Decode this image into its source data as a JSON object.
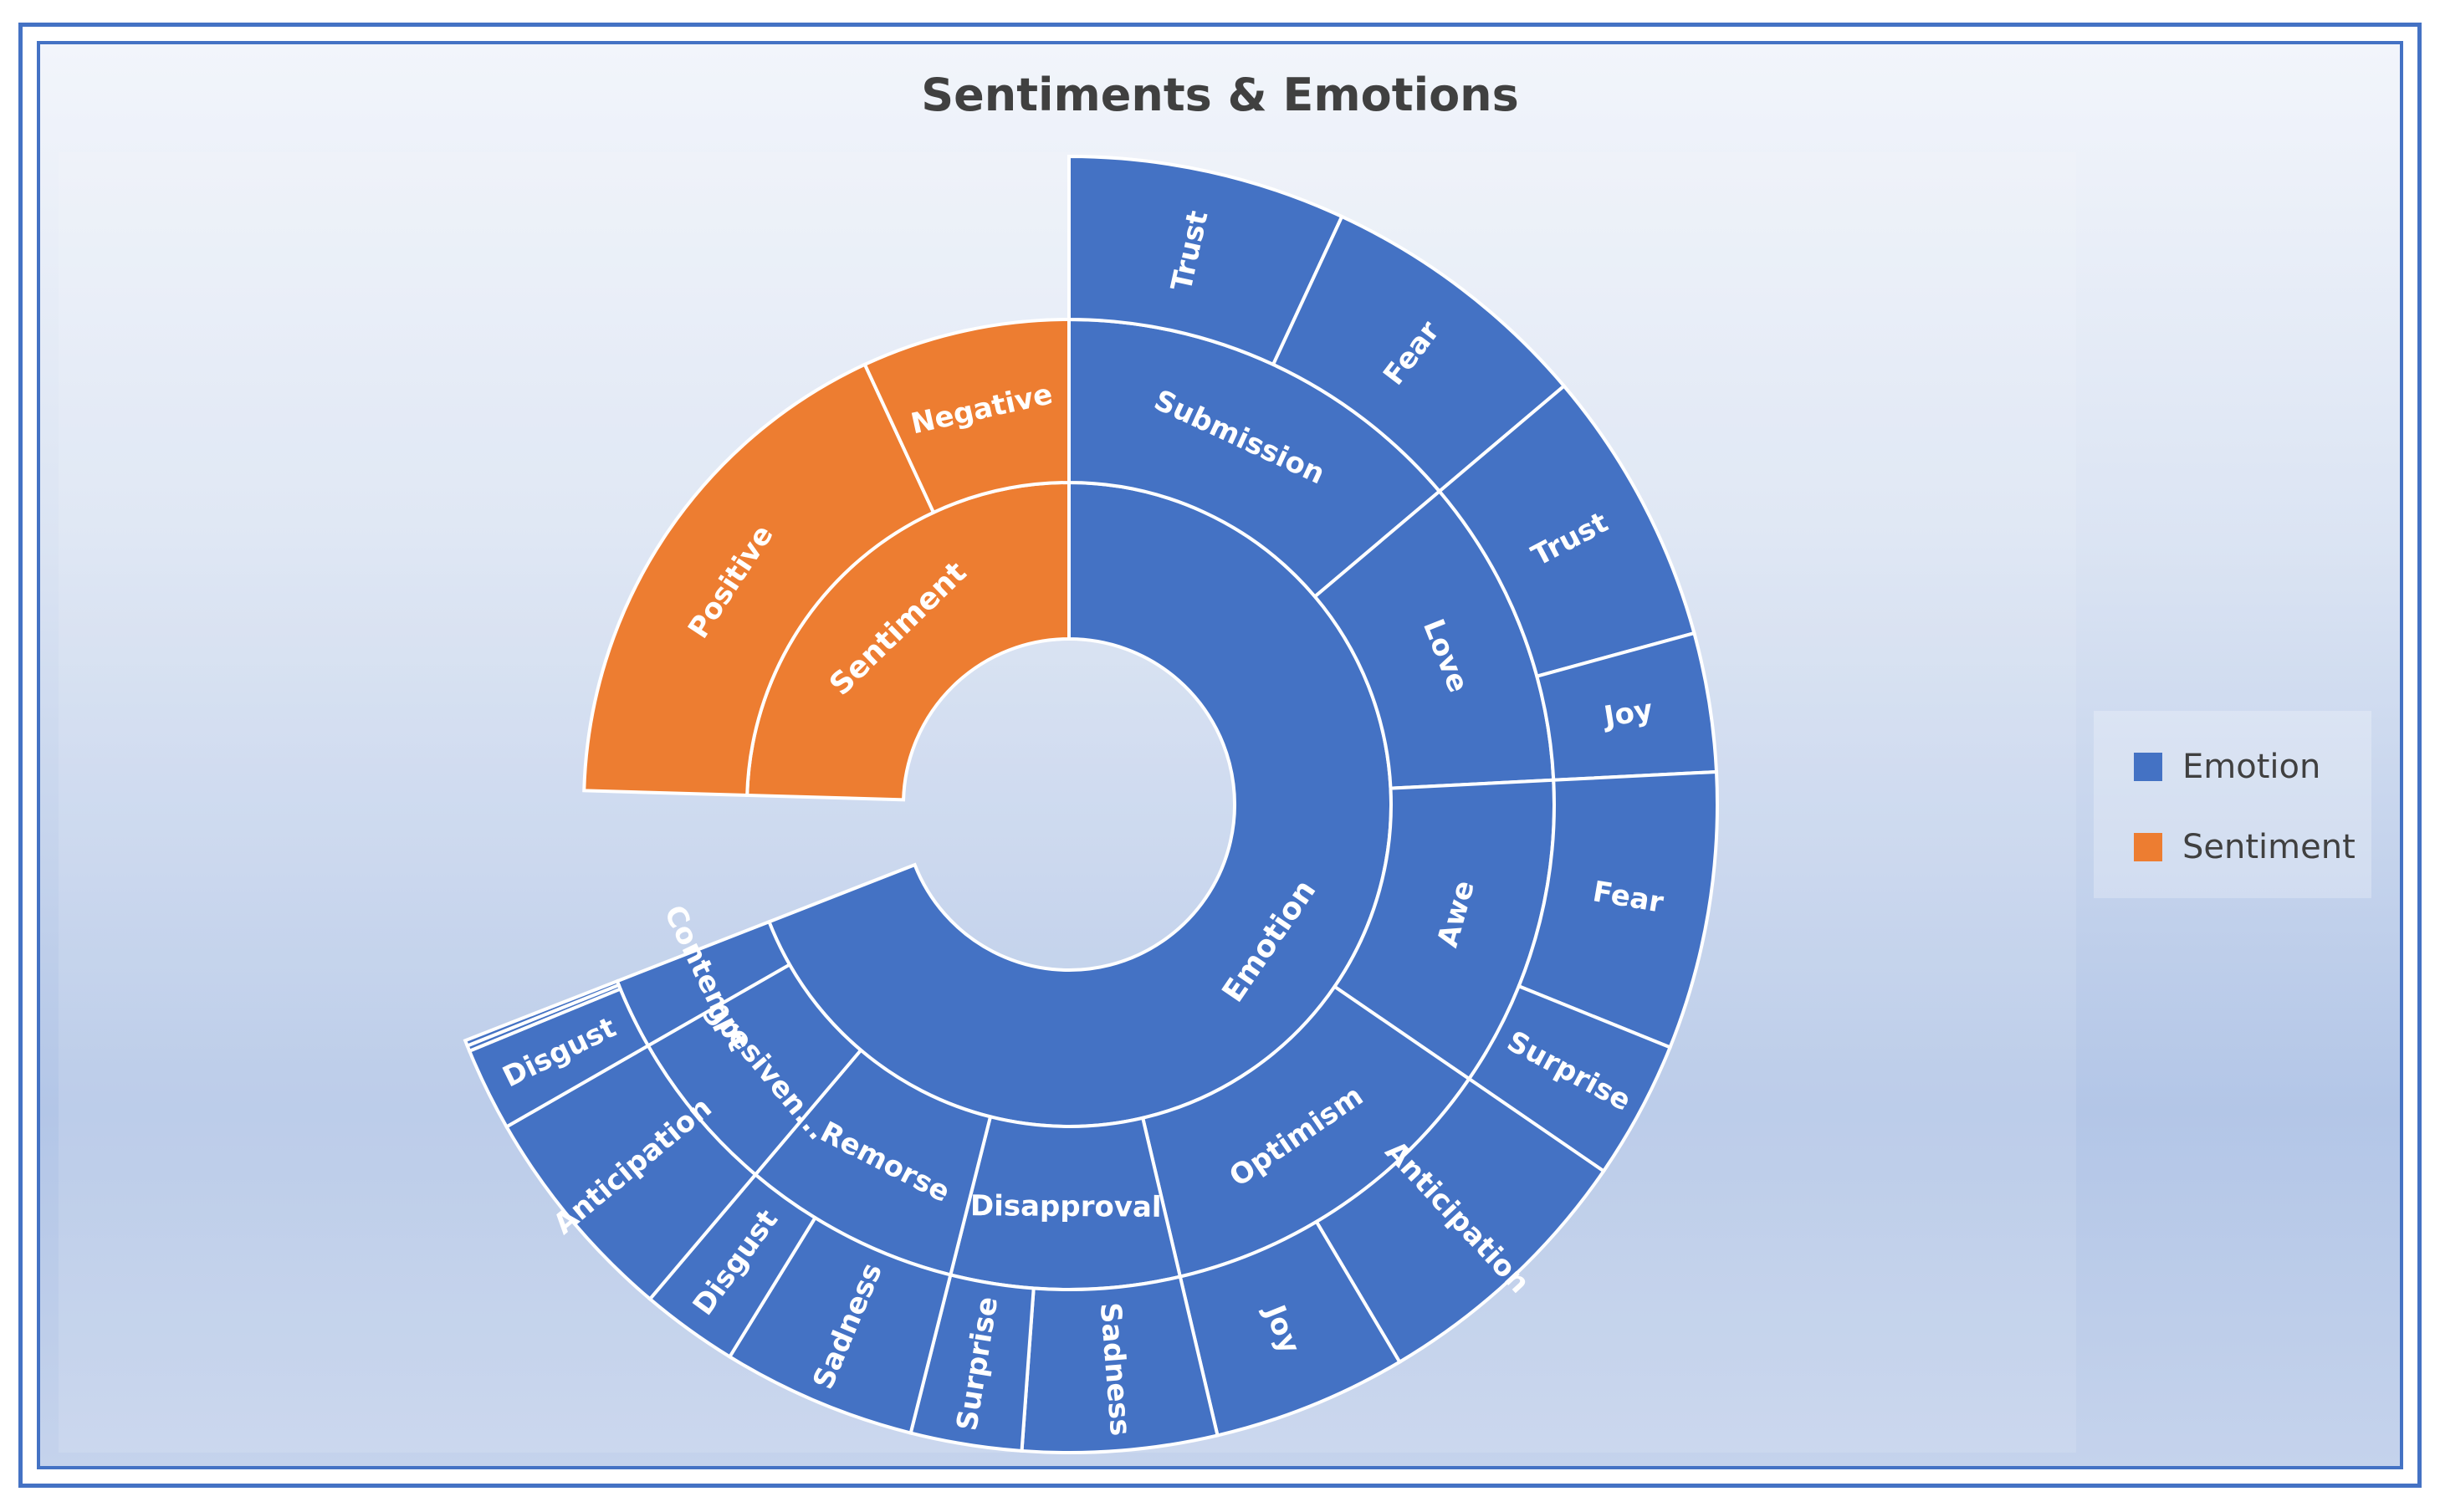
{
  "chart_data": {
    "type": "sunburst",
    "title": "Sentiments & Emotions",
    "colors": {
      "Emotion": "#4472c4",
      "Sentiment": "#ed7d31"
    },
    "legend": {
      "position": "right",
      "entries": [
        "Emotion",
        "Sentiment"
      ]
    },
    "root": [
      {
        "name": "Emotion",
        "children": [
          {
            "name": "Submission",
            "children": [
              {
                "name": "Trust",
                "value": 1
              },
              {
                "name": "Fear",
                "value": 1
              }
            ]
          },
          {
            "name": "Love",
            "children": [
              {
                "name": "Trust",
                "value": 1
              },
              {
                "name": "Joy",
                "value": 0.5
              }
            ]
          },
          {
            "name": "Awe",
            "children": [
              {
                "name": "Fear",
                "value": 1
              },
              {
                "name": "Surprise",
                "value": 0.5
              }
            ]
          },
          {
            "name": "Optimism",
            "children": [
              {
                "name": "Anticipation",
                "value": 1
              },
              {
                "name": "Joy",
                "value": 0.7
              }
            ]
          },
          {
            "name": "Disapproval",
            "children": [
              {
                "name": "Sadness",
                "value": 0.7
              },
              {
                "name": "Surprise",
                "value": 0.4
              }
            ]
          },
          {
            "name": "Remorse",
            "children": [
              {
                "name": "Sadness",
                "value": 0.7
              },
              {
                "name": "Disgust",
                "value": 0.35
              }
            ]
          },
          {
            "name": "Agresiven...",
            "children": [
              {
                "name": "Anticipation",
                "value": 0.8
              }
            ]
          },
          {
            "name": "Contempt",
            "children": [
              {
                "name": "Disgust",
                "value": 0.3
              },
              {
                "name": "",
                "value": 0.02
              },
              {
                "name": "",
                "value": 0.02
              }
            ]
          }
        ]
      },
      {
        "name": "Sentiment",
        "children": [
          {
            "name": "Positive",
            "value": 2.55
          },
          {
            "name": "Negative",
            "value": 1
          }
        ]
      }
    ]
  }
}
